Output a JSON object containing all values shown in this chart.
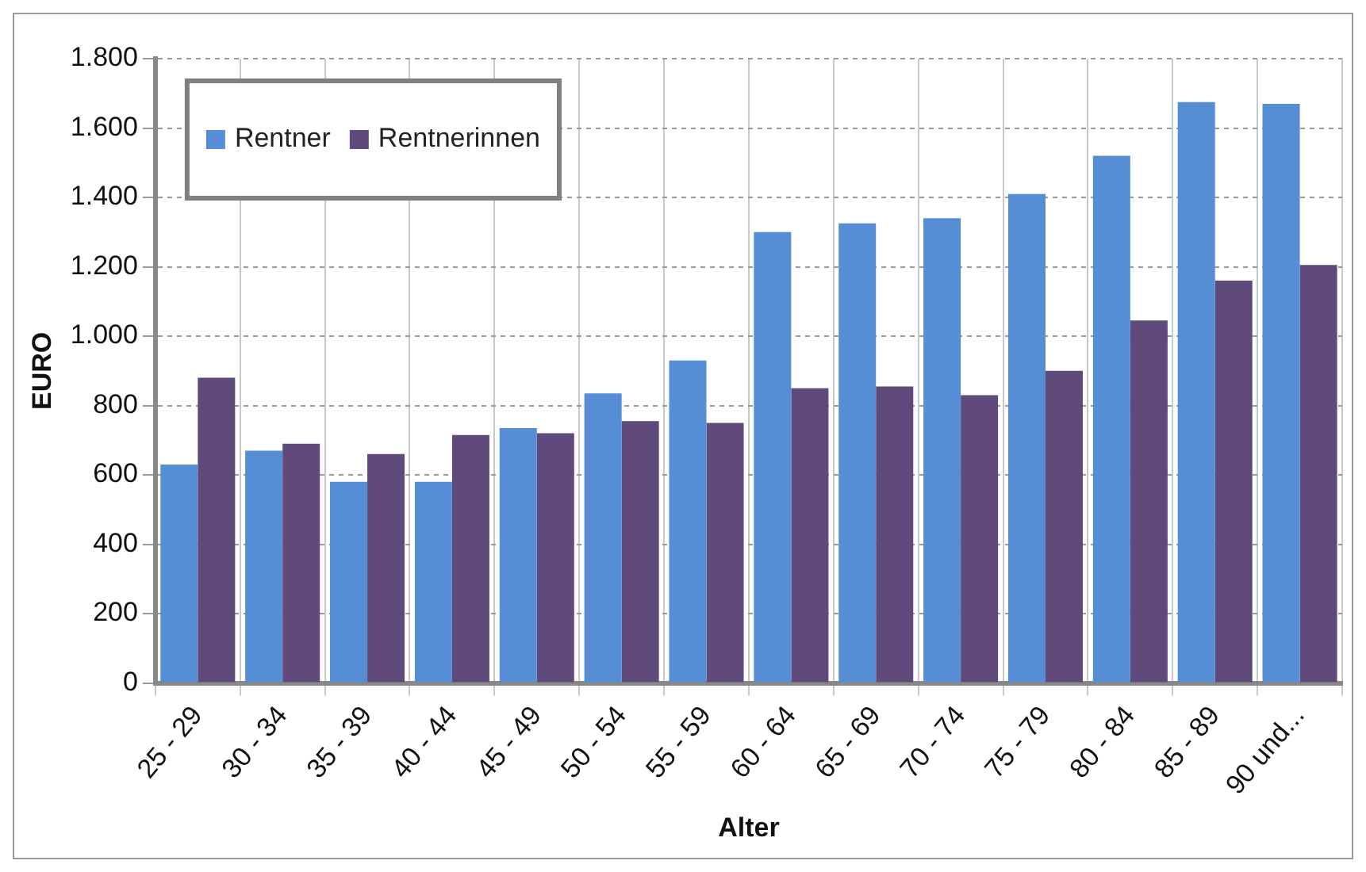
{
  "chart_data": {
    "type": "bar",
    "xlabel": "Alter",
    "ylabel": "EURO",
    "categories": [
      "25 - 29",
      "30 - 34",
      "35 - 39",
      "40 - 44",
      "45 - 49",
      "50 - 54",
      "55 - 59",
      "60 - 64",
      "65 - 69",
      "70 - 74",
      "75 - 79",
      "80 - 84",
      "85 - 89",
      "90 und..."
    ],
    "series": [
      {
        "name": "Rentner",
        "color": "#558ed5",
        "values": [
          630,
          670,
          580,
          580,
          735,
          835,
          930,
          1300,
          1325,
          1340,
          1410,
          1520,
          1675,
          1670
        ]
      },
      {
        "name": "Rentnerinnen",
        "color": "#604a7b",
        "values": [
          880,
          690,
          660,
          715,
          720,
          755,
          750,
          850,
          855,
          830,
          900,
          1045,
          1160,
          1205
        ]
      }
    ],
    "ylim": [
      0,
      1800
    ],
    "yticks": [
      0,
      200,
      400,
      600,
      800,
      {
        "value": 1000,
        "label": "1.000"
      },
      {
        "value": 1200,
        "label": "1.200"
      },
      {
        "value": 1400,
        "label": "1.400"
      },
      {
        "value": 1600,
        "label": "1.600"
      },
      {
        "value": 1800,
        "label": "1.800"
      }
    ],
    "grid": true,
    "legend": "top left"
  }
}
